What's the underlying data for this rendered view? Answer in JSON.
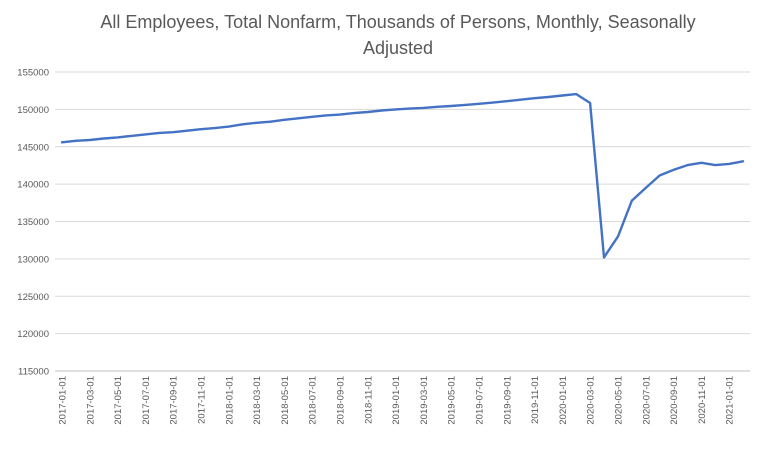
{
  "chart_data": {
    "type": "line",
    "title": "All Employees, Total Nonfarm, Thousands of Persons, Monthly, Seasonally Adjusted",
    "title_lines": [
      "All Employees, Total Nonfarm, Thousands of Persons, Monthly, Seasonally",
      "Adjusted"
    ],
    "xlabel": "",
    "ylabel": "",
    "ylim": [
      115000,
      155000
    ],
    "yticks": [
      115000,
      120000,
      125000,
      130000,
      135000,
      140000,
      145000,
      150000,
      155000
    ],
    "ytick_labels": [
      "115000",
      "120000",
      "125000",
      "130000",
      "135000",
      "140000",
      "145000",
      "150000",
      "155000"
    ],
    "xtick_labels": [
      "2017-01-01",
      "2017-03-01",
      "2017-05-01",
      "2017-07-01",
      "2017-09-01",
      "2017-11-01",
      "2018-01-01",
      "2018-03-01",
      "2018-05-01",
      "2018-07-01",
      "2018-09-01",
      "2018-11-01",
      "2019-01-01",
      "2019-03-01",
      "2019-05-01",
      "2019-07-01",
      "2019-09-01",
      "2019-11-01",
      "2020-01-01",
      "2020-03-01",
      "2020-05-01",
      "2020-07-01",
      "2020-09-01",
      "2020-11-01",
      "2021-01-01"
    ],
    "grid": true,
    "legend": "none",
    "color": "#4472c4",
    "x": [
      "2017-01-01",
      "2017-02-01",
      "2017-03-01",
      "2017-04-01",
      "2017-05-01",
      "2017-06-01",
      "2017-07-01",
      "2017-08-01",
      "2017-09-01",
      "2017-10-01",
      "2017-11-01",
      "2017-12-01",
      "2018-01-01",
      "2018-02-01",
      "2018-03-01",
      "2018-04-01",
      "2018-05-01",
      "2018-06-01",
      "2018-07-01",
      "2018-08-01",
      "2018-09-01",
      "2018-10-01",
      "2018-11-01",
      "2018-12-01",
      "2019-01-01",
      "2019-02-01",
      "2019-03-01",
      "2019-04-01",
      "2019-05-01",
      "2019-06-01",
      "2019-07-01",
      "2019-08-01",
      "2019-09-01",
      "2019-10-01",
      "2019-11-01",
      "2019-12-01",
      "2020-01-01",
      "2020-02-01",
      "2020-03-01",
      "2020-04-01",
      "2020-05-01",
      "2020-06-01",
      "2020-07-01",
      "2020-08-01",
      "2020-09-01",
      "2020-10-01",
      "2020-11-01",
      "2020-12-01",
      "2021-01-01",
      "2021-02-01"
    ],
    "series": [
      {
        "values": [
          145600,
          145800,
          145900,
          146100,
          146250,
          146450,
          146650,
          146850,
          146950,
          147150,
          147350,
          147500,
          147700,
          148000,
          148200,
          148350,
          148600,
          148800,
          149000,
          149200,
          149300,
          149500,
          149650,
          149850,
          150000,
          150100,
          150200,
          150350,
          150450,
          150600,
          150750,
          150900,
          151100,
          151300,
          151500,
          151650,
          151850,
          152050,
          150850,
          130200,
          133000,
          137800,
          139500,
          141150,
          141900,
          142550,
          142850,
          142550,
          142700,
          143050
        ]
      }
    ]
  }
}
